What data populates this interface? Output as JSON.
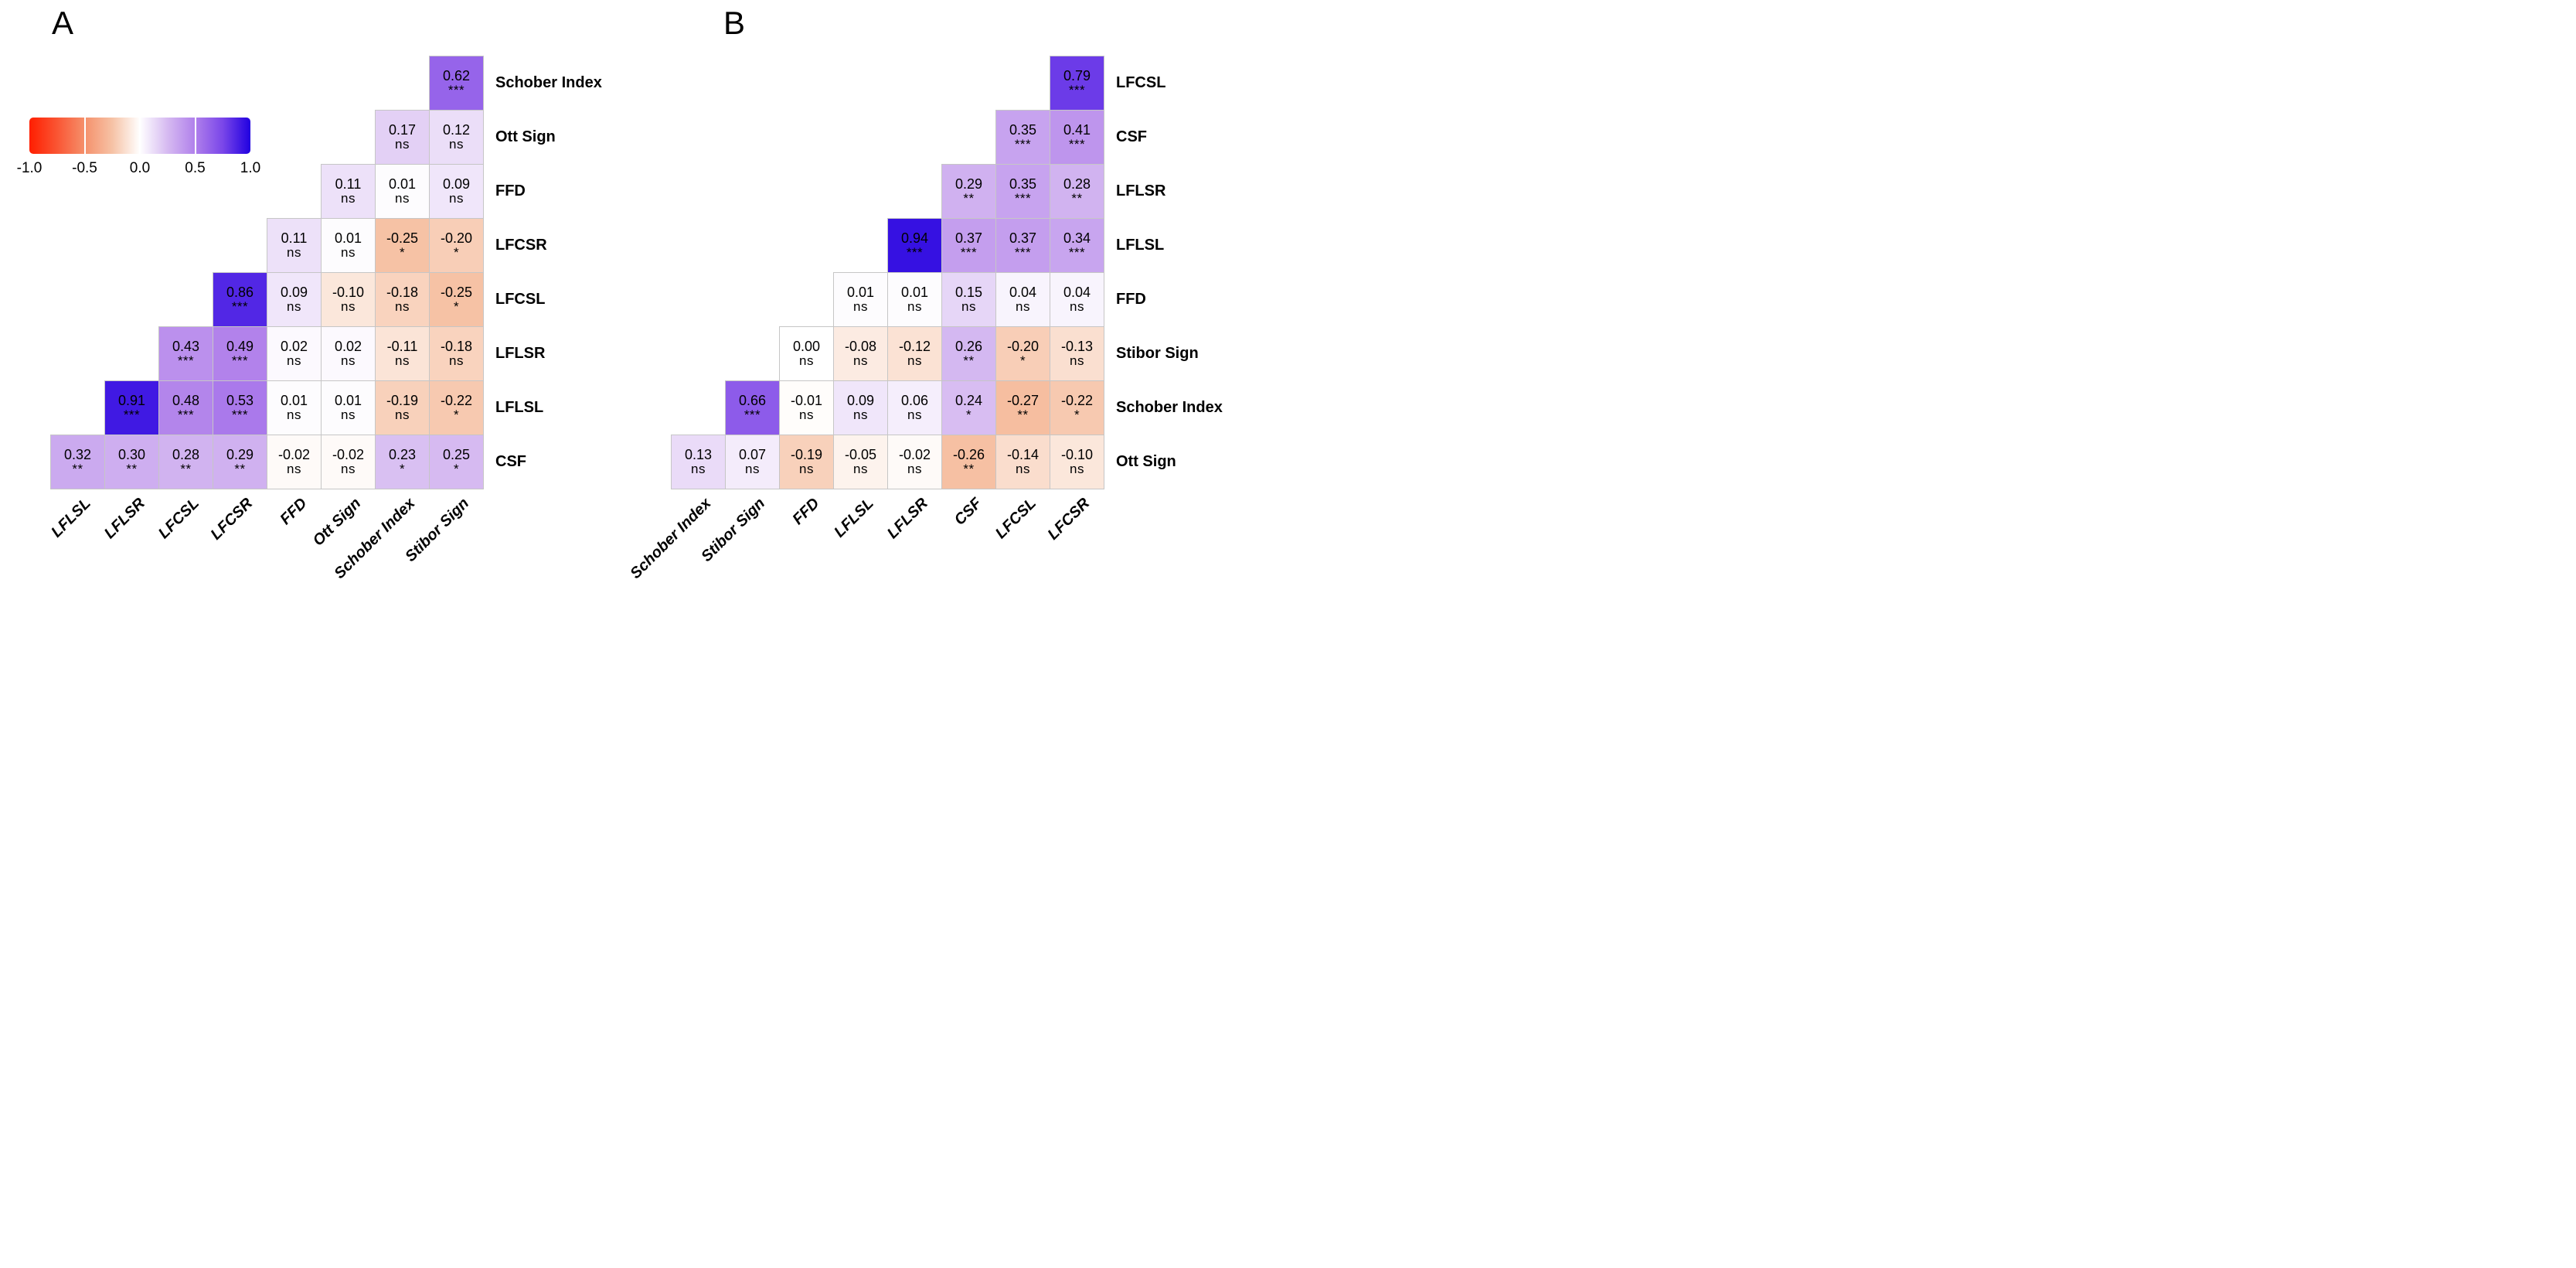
{
  "figure": {
    "background": "#FFFFFF",
    "colorbar": {
      "tick_labels": [
        "-1.0",
        "-0.5",
        "0.0",
        "0.5",
        "1.0"
      ],
      "gradient_stops": [
        {
          "value": -1,
          "color": "#FF1E00"
        },
        {
          "value": -0.75,
          "color": "#FA5533"
        },
        {
          "value": -0.5,
          "color": "#F5906B"
        },
        {
          "value": -0.25,
          "color": "#F6C2A5"
        },
        {
          "value": 0,
          "color": "#FFFFFF"
        },
        {
          "value": 0.25,
          "color": "#D6BAF1"
        },
        {
          "value": 0.5,
          "color": "#B080EB"
        },
        {
          "value": 0.75,
          "color": "#7A46E9"
        },
        {
          "value": 1,
          "color": "#2000E0"
        }
      ]
    }
  },
  "chart_data": [
    {
      "type": "heatmap",
      "panel": "A",
      "subtype": "correlation-triangle-diagonal-omitted",
      "value_range": [
        -1,
        1
      ],
      "columns": [
        "LFLSL",
        "LFLSR",
        "LFCSL",
        "LFCSR",
        "FFD",
        "Ott Sign",
        "Schober Index",
        "Stibor Sign"
      ],
      "rows": [
        {
          "label": "Schober Index",
          "cells": [
            {
              "r": 0.62,
              "sig": "***"
            }
          ]
        },
        {
          "label": "Ott Sign",
          "cells": [
            {
              "r": 0.17,
              "sig": "ns"
            },
            {
              "r": 0.12,
              "sig": "ns"
            }
          ]
        },
        {
          "label": "FFD",
          "cells": [
            {
              "r": 0.11,
              "sig": "ns"
            },
            {
              "r": 0.01,
              "sig": "ns"
            },
            {
              "r": 0.09,
              "sig": "ns"
            }
          ]
        },
        {
          "label": "LFCSR",
          "cells": [
            {
              "r": 0.11,
              "sig": "ns"
            },
            {
              "r": 0.01,
              "sig": "ns"
            },
            {
              "r": -0.25,
              "sig": "*"
            },
            {
              "r": -0.2,
              "sig": "*"
            }
          ]
        },
        {
          "label": "LFCSL",
          "cells": [
            {
              "r": 0.86,
              "sig": "***"
            },
            {
              "r": 0.09,
              "sig": "ns"
            },
            {
              "r": -0.1,
              "sig": "ns"
            },
            {
              "r": -0.18,
              "sig": "ns"
            },
            {
              "r": -0.25,
              "sig": "*"
            }
          ]
        },
        {
          "label": "LFLSR",
          "cells": [
            {
              "r": 0.43,
              "sig": "***"
            },
            {
              "r": 0.49,
              "sig": "***"
            },
            {
              "r": 0.02,
              "sig": "ns"
            },
            {
              "r": 0.02,
              "sig": "ns"
            },
            {
              "r": -0.11,
              "sig": "ns"
            },
            {
              "r": -0.18,
              "sig": "ns"
            }
          ]
        },
        {
          "label": "LFLSL",
          "cells": [
            {
              "r": 0.91,
              "sig": "***"
            },
            {
              "r": 0.48,
              "sig": "***"
            },
            {
              "r": 0.53,
              "sig": "***"
            },
            {
              "r": 0.01,
              "sig": "ns"
            },
            {
              "r": 0.01,
              "sig": "ns"
            },
            {
              "r": -0.19,
              "sig": "ns"
            },
            {
              "r": -0.22,
              "sig": "*"
            }
          ]
        },
        {
          "label": "CSF",
          "cells": [
            {
              "r": 0.32,
              "sig": "**"
            },
            {
              "r": 0.3,
              "sig": "**"
            },
            {
              "r": 0.28,
              "sig": "**"
            },
            {
              "r": 0.29,
              "sig": "**"
            },
            {
              "r": -0.02,
              "sig": "ns"
            },
            {
              "r": -0.02,
              "sig": "ns"
            },
            {
              "r": 0.23,
              "sig": "*"
            },
            {
              "r": 0.25,
              "sig": "*"
            }
          ]
        }
      ]
    },
    {
      "type": "heatmap",
      "panel": "B",
      "subtype": "correlation-triangle-diagonal-omitted",
      "value_range": [
        -1,
        1
      ],
      "columns": [
        "Schober Index",
        "Stibor Sign",
        "FFD",
        "LFLSL",
        "LFLSR",
        "CSF",
        "LFCSL",
        "LFCSR"
      ],
      "rows": [
        {
          "label": "LFCSL",
          "cells": [
            {
              "r": 0.79,
              "sig": "***"
            }
          ]
        },
        {
          "label": "CSF",
          "cells": [
            {
              "r": 0.35,
              "sig": "***"
            },
            {
              "r": 0.41,
              "sig": "***"
            }
          ]
        },
        {
          "label": "LFLSR",
          "cells": [
            {
              "r": 0.29,
              "sig": "**"
            },
            {
              "r": 0.35,
              "sig": "***"
            },
            {
              "r": 0.28,
              "sig": "**"
            }
          ]
        },
        {
          "label": "LFLSL",
          "cells": [
            {
              "r": 0.94,
              "sig": "***"
            },
            {
              "r": 0.37,
              "sig": "***"
            },
            {
              "r": 0.37,
              "sig": "***"
            },
            {
              "r": 0.34,
              "sig": "***"
            }
          ]
        },
        {
          "label": "FFD",
          "cells": [
            {
              "r": 0.01,
              "sig": "ns"
            },
            {
              "r": 0.01,
              "sig": "ns"
            },
            {
              "r": 0.15,
              "sig": "ns"
            },
            {
              "r": 0.04,
              "sig": "ns"
            },
            {
              "r": 0.04,
              "sig": "ns"
            }
          ]
        },
        {
          "label": "Stibor Sign",
          "cells": [
            {
              "r": 0,
              "sig": "ns"
            },
            {
              "r": -0.08,
              "sig": "ns"
            },
            {
              "r": -0.12,
              "sig": "ns"
            },
            {
              "r": 0.26,
              "sig": "**"
            },
            {
              "r": -0.2,
              "sig": "*"
            },
            {
              "r": -0.13,
              "sig": "ns"
            }
          ]
        },
        {
          "label": "Schober Index",
          "cells": [
            {
              "r": 0.66,
              "sig": "***"
            },
            {
              "r": -0.01,
              "sig": "ns"
            },
            {
              "r": 0.09,
              "sig": "ns"
            },
            {
              "r": 0.06,
              "sig": "ns"
            },
            {
              "r": 0.24,
              "sig": "*"
            },
            {
              "r": -0.27,
              "sig": "**"
            },
            {
              "r": -0.22,
              "sig": "*"
            }
          ]
        },
        {
          "label": "Ott Sign",
          "cells": [
            {
              "r": 0.13,
              "sig": "ns"
            },
            {
              "r": 0.07,
              "sig": "ns"
            },
            {
              "r": -0.19,
              "sig": "ns"
            },
            {
              "r": -0.05,
              "sig": "ns"
            },
            {
              "r": -0.02,
              "sig": "ns"
            },
            {
              "r": -0.26,
              "sig": "**"
            },
            {
              "r": -0.14,
              "sig": "ns"
            },
            {
              "r": -0.1,
              "sig": "ns"
            }
          ]
        }
      ]
    }
  ]
}
